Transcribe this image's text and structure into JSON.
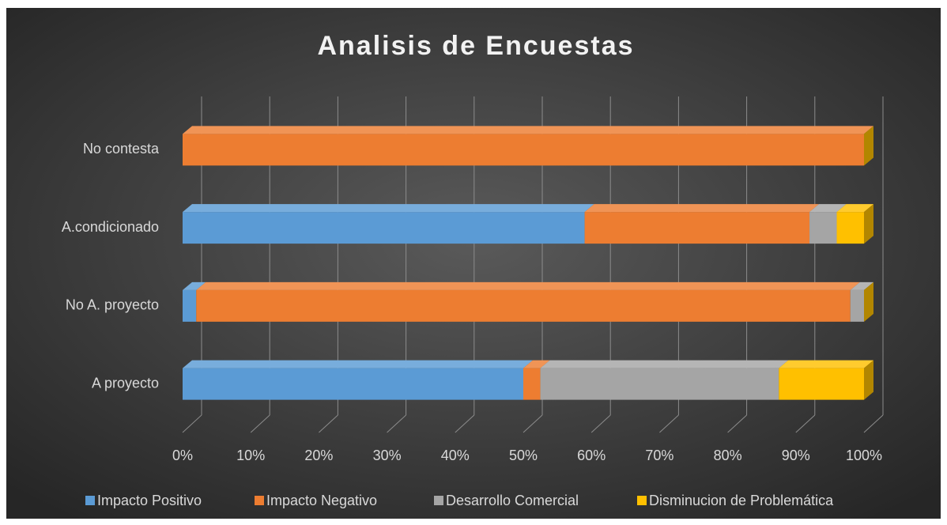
{
  "chart_data": {
    "type": "bar",
    "stacked": true,
    "orientation": "horizontal",
    "title": "Analisis de Encuestas",
    "categories": [
      "A proyecto",
      "No A. proyecto",
      "A.condicionado",
      "No contesta"
    ],
    "series": [
      {
        "name": "Impacto Positivo",
        "color": "#5b9bd5",
        "values": [
          50,
          2,
          59,
          0
        ]
      },
      {
        "name": "Impacto Negativo",
        "color": "#ed7d31",
        "values": [
          2.5,
          96,
          33,
          100
        ]
      },
      {
        "name": "Desarrollo Comercial",
        "color": "#a5a5a5",
        "values": [
          35,
          2,
          4,
          0
        ]
      },
      {
        "name": "Disminucion de Problemática",
        "color": "#ffc000",
        "values": [
          12.5,
          0,
          4,
          0
        ]
      }
    ],
    "xlim": [
      0,
      100
    ],
    "xticks": [
      {
        "value": 0,
        "label": "0%"
      },
      {
        "value": 10,
        "label": "10%"
      },
      {
        "value": 20,
        "label": "20%"
      },
      {
        "value": 30,
        "label": "30%"
      },
      {
        "value": 40,
        "label": "40%"
      },
      {
        "value": 50,
        "label": "50%"
      },
      {
        "value": 60,
        "label": "60%"
      },
      {
        "value": 70,
        "label": "70%"
      },
      {
        "value": 80,
        "label": "80%"
      },
      {
        "value": 90,
        "label": "90%"
      },
      {
        "value": 100,
        "label": "100%"
      }
    ],
    "grid": true,
    "legend": "bottom"
  }
}
